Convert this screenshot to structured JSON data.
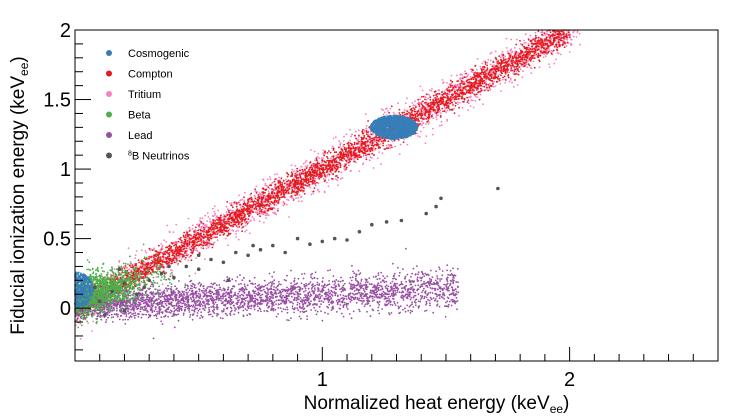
{
  "chart_data": {
    "type": "scatter",
    "title": "",
    "xlabel": {
      "main": "Normalized heat energy (keV",
      "sub": "ee",
      "end": ")"
    },
    "ylabel": {
      "main": "Fiducial ionization energy (keV",
      "sub": "ee",
      "end": ")"
    },
    "xlim": [
      0,
      2.6
    ],
    "ylim": [
      -0.38,
      2.0
    ],
    "x_ticks": [
      {
        "value": 1,
        "label": "1"
      },
      {
        "value": 2,
        "label": "2"
      }
    ],
    "y_ticks": [
      {
        "value": 0,
        "label": "0"
      },
      {
        "value": 0.5,
        "label": "0.5"
      },
      {
        "value": 1,
        "label": "1"
      },
      {
        "value": 1.5,
        "label": "1.5"
      },
      {
        "value": 2,
        "label": "2"
      }
    ],
    "grid": false,
    "legend_position": "top-left",
    "series": [
      {
        "name": "Compton",
        "label": "Compton",
        "color": "#e41a1c",
        "description": "band along ionization = heat",
        "x_range": [
          0,
          2.0
        ]
      },
      {
        "name": "Tritium",
        "label": "Tritium",
        "color": "#f781bf",
        "description": "wider halo around the electron-recoil band",
        "x_range": [
          0,
          2.05
        ]
      },
      {
        "name": "Lead",
        "label": "Lead",
        "color": "#984ea3",
        "description": "low-yield band near ionization 0 to 0.2",
        "x_range": [
          0,
          1.55
        ]
      },
      {
        "name": "Beta",
        "label": "Beta",
        "color": "#4daf4a",
        "description": "cluster at low energy",
        "x_range": [
          0,
          0.35
        ]
      },
      {
        "name": "Cosmogenic",
        "label": "Cosmogenic",
        "color": "#377eb8",
        "centers": [
          [
            1.29,
            1.3
          ],
          [
            0.0,
            0.13
          ]
        ]
      },
      {
        "name": "8B Neutrinos",
        "label": "B Neutrinos",
        "superscript": "8",
        "color": "#555555",
        "points": [
          [
            0.1,
            0.05
          ],
          [
            0.15,
            0.12
          ],
          [
            0.2,
            0.18
          ],
          [
            0.25,
            0.1
          ],
          [
            0.3,
            0.2
          ],
          [
            0.35,
            0.25
          ],
          [
            0.4,
            0.22
          ],
          [
            0.45,
            0.3
          ],
          [
            0.5,
            0.28
          ],
          [
            0.55,
            0.35
          ],
          [
            0.6,
            0.33
          ],
          [
            0.65,
            0.4
          ],
          [
            0.7,
            0.38
          ],
          [
            0.75,
            0.42
          ],
          [
            0.8,
            0.45
          ],
          [
            0.85,
            0.4
          ],
          [
            0.9,
            0.5
          ],
          [
            0.95,
            0.46
          ],
          [
            1.0,
            0.48
          ],
          [
            1.05,
            0.5
          ],
          [
            1.1,
            0.49
          ],
          [
            1.15,
            0.55
          ],
          [
            1.2,
            0.6
          ],
          [
            1.26,
            0.62
          ],
          [
            1.32,
            0.63
          ],
          [
            1.42,
            0.68
          ],
          [
            1.46,
            0.73
          ],
          [
            1.48,
            0.79
          ],
          [
            1.71,
            0.86
          ],
          [
            0.12,
            -0.05
          ],
          [
            0.2,
            -0.02
          ],
          [
            0.08,
            0.15
          ],
          [
            0.18,
            0.28
          ],
          [
            0.28,
            0.15
          ],
          [
            0.38,
            0.3
          ],
          [
            0.5,
            0.38
          ],
          [
            0.62,
            0.2
          ],
          [
            0.72,
            0.45
          ]
        ]
      }
    ],
    "legend_order": [
      "Cosmogenic",
      "Compton",
      "Tritium",
      "Beta",
      "Lead",
      "8B Neutrinos"
    ]
  }
}
